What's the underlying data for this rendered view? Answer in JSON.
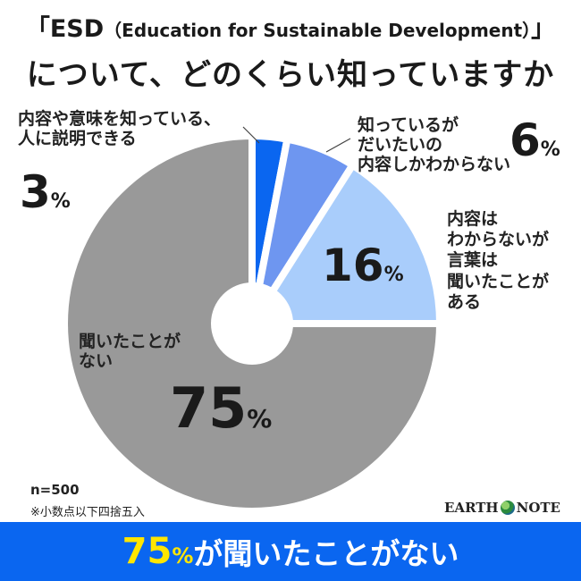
{
  "title_line1_main": "「ESD",
  "title_line1_paren": "（Education for Sustainable Development）",
  "title_line1_end": "」",
  "title_line2": "について、どのくらい知っていますか",
  "chart_data": {
    "type": "pie",
    "title": "「ESD（Education for Sustainable Development）」について、どのくらい知っていますか",
    "slices": [
      {
        "key": "s1",
        "label_lines": [
          "内容や意味を知っている、",
          "人に説明できる"
        ],
        "value": 3,
        "color": "#0a66f0"
      },
      {
        "key": "s2",
        "label_lines": [
          "知っているが",
          "だいたいの",
          "内容しかわからない"
        ],
        "value": 6,
        "color": "#6e96f0"
      },
      {
        "key": "s3",
        "label_lines": [
          "内容は",
          "わからないが",
          "言葉は",
          "聞いたことが",
          "ある"
        ],
        "value": 16,
        "color": "#a9cdfb"
      },
      {
        "key": "s4",
        "label_lines": [
          "聞いたことが",
          "ない"
        ],
        "value": 75,
        "color": "#999999"
      }
    ],
    "unit": "%",
    "start_angle_deg": 0,
    "direction": "clockwise"
  },
  "sample_note": "n=500",
  "rounding_note": "※小数点以下四捨五入",
  "logo_left": "EARTH",
  "logo_right": "NOTE",
  "banner": {
    "value": "75",
    "unit": "%",
    "text": "が聞いたことがない"
  }
}
